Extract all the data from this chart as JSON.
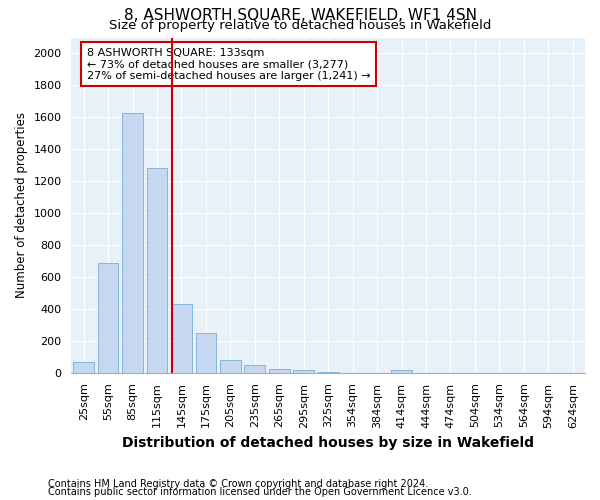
{
  "title": "8, ASHWORTH SQUARE, WAKEFIELD, WF1 4SN",
  "subtitle": "Size of property relative to detached houses in Wakefield",
  "xlabel": "Distribution of detached houses by size in Wakefield",
  "ylabel": "Number of detached properties",
  "footnote1": "Contains HM Land Registry data © Crown copyright and database right 2024.",
  "footnote2": "Contains public sector information licensed under the Open Government Licence v3.0.",
  "annotation_line1": "8 ASHWORTH SQUARE: 133sqm",
  "annotation_line2": "← 73% of detached houses are smaller (3,277)",
  "annotation_line3": "27% of semi-detached houses are larger (1,241) →",
  "bar_color": "#c5d8f0",
  "bar_edge_color": "#7aadd4",
  "highlight_line_color": "#cc0000",
  "background_color": "#e8f0f8",
  "bin_labels": [
    "25sqm",
    "55sqm",
    "85sqm",
    "115sqm",
    "145sqm",
    "175sqm",
    "205sqm",
    "235sqm",
    "265sqm",
    "295sqm",
    "325sqm",
    "354sqm",
    "384sqm",
    "414sqm",
    "444sqm",
    "474sqm",
    "504sqm",
    "534sqm",
    "564sqm",
    "594sqm",
    "624sqm"
  ],
  "bin_positions": [
    0,
    1,
    2,
    3,
    4,
    5,
    6,
    7,
    8,
    9,
    10,
    11,
    12,
    13,
    14,
    15,
    16,
    17,
    18,
    19,
    20
  ],
  "values": [
    65,
    690,
    1625,
    1280,
    430,
    247,
    82,
    48,
    25,
    20,
    8,
    0,
    0,
    18,
    0,
    0,
    0,
    0,
    0,
    0,
    0
  ],
  "property_size_bin": 3.6,
  "ylim": [
    0,
    2100
  ],
  "yticks": [
    0,
    200,
    400,
    600,
    800,
    1000,
    1200,
    1400,
    1600,
    1800,
    2000
  ],
  "title_fontsize": 11,
  "subtitle_fontsize": 9.5,
  "xlabel_fontsize": 10,
  "ylabel_fontsize": 8.5,
  "tick_fontsize": 8,
  "footnote_fontsize": 7
}
